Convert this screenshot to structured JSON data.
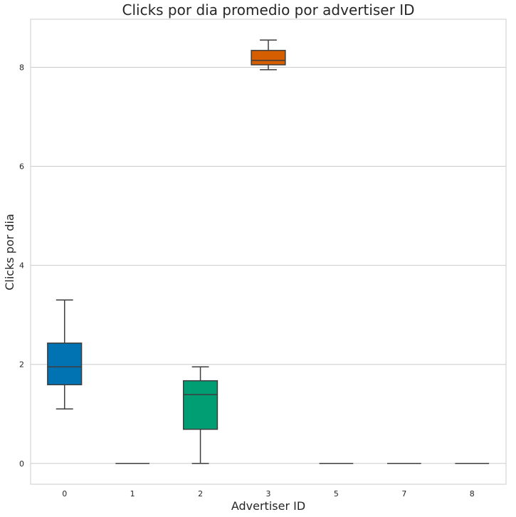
{
  "chart_data": {
    "type": "box",
    "title": "Clicks por dia promedio por advertiser ID",
    "xlabel": "Advertiser ID",
    "ylabel": "Clicks por dia",
    "categories": [
      "0",
      "1",
      "2",
      "3",
      "5",
      "7",
      "8"
    ],
    "ylim": [
      -0.42,
      8.97
    ],
    "yticks": [
      "0",
      "2",
      "4",
      "6",
      "8"
    ],
    "grid": "horizontal",
    "boxes": [
      {
        "category": "0",
        "whisker_low": 1.1,
        "q1": 1.59,
        "median": 1.95,
        "q3": 2.43,
        "whisker_high": 3.3,
        "color": "#0173b2"
      },
      {
        "category": "1",
        "whisker_low": 0,
        "q1": 0,
        "median": 0,
        "q3": 0,
        "whisker_high": 0,
        "color": "#de8f05"
      },
      {
        "category": "2",
        "whisker_low": 0,
        "q1": 0.69,
        "median": 1.39,
        "q3": 1.67,
        "whisker_high": 1.95,
        "color": "#029e73"
      },
      {
        "category": "3",
        "whisker_low": 7.95,
        "q1": 8.05,
        "median": 8.14,
        "q3": 8.34,
        "whisker_high": 8.55,
        "color": "#d55e00"
      },
      {
        "category": "5",
        "whisker_low": 0,
        "q1": 0,
        "median": 0,
        "q3": 0,
        "whisker_high": 0,
        "color": "#cc78bc"
      },
      {
        "category": "7",
        "whisker_low": 0,
        "q1": 0,
        "median": 0,
        "q3": 0,
        "whisker_high": 0,
        "color": "#ca9161"
      },
      {
        "category": "8",
        "whisker_low": 0,
        "q1": 0,
        "median": 0,
        "q3": 0,
        "whisker_high": 0,
        "color": "#fbafe4"
      }
    ]
  }
}
